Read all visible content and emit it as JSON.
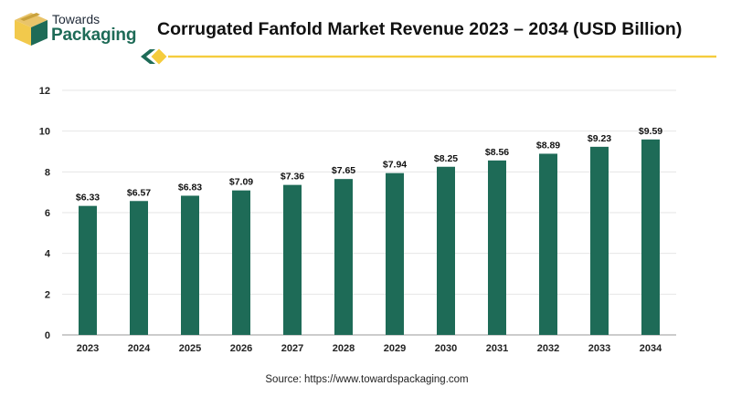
{
  "brand": {
    "line1": "Towards",
    "line2": "Packaging"
  },
  "colors": {
    "bar": "#1e6b57",
    "accent": "#f5cc3d",
    "brand_dark": "#1e6b57"
  },
  "source": {
    "label": "Source:",
    "url": "https://www.towardspackaging.com"
  },
  "chart_data": {
    "type": "bar",
    "title": "Corrugated Fanfold Market Revenue 2023 – 2034 (USD Billion)",
    "categories": [
      "2023",
      "2024",
      "2025",
      "2026",
      "2027",
      "2028",
      "2029",
      "2030",
      "2031",
      "2032",
      "2033",
      "2034"
    ],
    "values": [
      6.33,
      6.57,
      6.83,
      7.09,
      7.36,
      7.65,
      7.94,
      8.25,
      8.56,
      8.89,
      9.23,
      9.59
    ],
    "data_labels": [
      "$6.33",
      "$6.57",
      "$6.83",
      "$7.09",
      "$7.36",
      "$7.65",
      "$7.94",
      "$8.25",
      "$8.56",
      "$8.89",
      "$9.23",
      "$9.59"
    ],
    "yticks": [
      "0",
      "2",
      "4",
      "6",
      "8",
      "10",
      "12"
    ],
    "ylim": [
      0,
      12
    ],
    "xlabel": "",
    "ylabel": "",
    "grid": true,
    "legend": "none"
  }
}
